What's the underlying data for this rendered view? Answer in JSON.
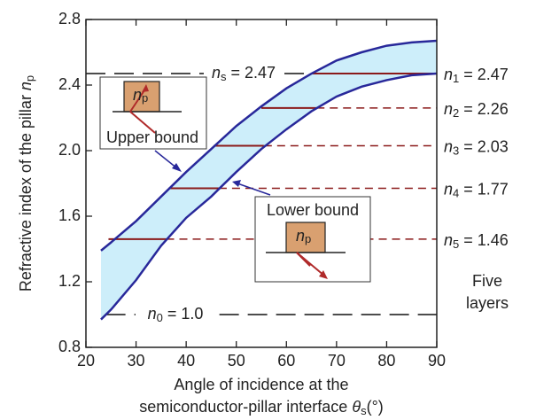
{
  "chart_data": {
    "type": "line",
    "xlabel": {
      "line1": "Angle of incidence at the",
      "text": "semiconductor-pillar interface ",
      "symbol": "θ",
      "subscript": "s",
      "rest": "(°)"
    },
    "ylabel": {
      "text": "Refractive index of the pillar ",
      "symbol": "n",
      "subscript": "p"
    },
    "xlim": [
      20,
      90
    ],
    "xticks": [
      20,
      30,
      40,
      50,
      60,
      70,
      80,
      90
    ],
    "ylim": [
      0.8,
      2.8
    ],
    "yticks": [
      0.8,
      1.2,
      1.6,
      {
        "value": 2,
        "label": "2.0"
      },
      2.4,
      2.8
    ],
    "fill_color": "#cdeefa",
    "series": [
      {
        "name": "Upper bound",
        "color": "#28289a",
        "x": [
          23,
          25,
          30,
          35,
          40,
          45,
          50,
          55,
          60,
          65,
          70,
          75,
          80,
          85,
          90
        ],
        "values": [
          1.39,
          1.44,
          1.57,
          1.72,
          1.87,
          2.01,
          2.15,
          2.27,
          2.38,
          2.47,
          2.55,
          2.6,
          2.64,
          2.66,
          2.67
        ]
      },
      {
        "name": "Lower bound",
        "color": "#28289a",
        "x": [
          23,
          25,
          30,
          35,
          40,
          45,
          50,
          55,
          60,
          65,
          70,
          75,
          80,
          85,
          90
        ],
        "values": [
          0.97,
          1.03,
          1.21,
          1.42,
          1.59,
          1.72,
          1.87,
          2.01,
          2.13,
          2.24,
          2.33,
          2.39,
          2.43,
          2.46,
          2.47
        ]
      }
    ],
    "layer_color": "#8b1a1a",
    "layers": [
      {
        "symbol": "n",
        "subscript": "1",
        "rest": " = 2.47",
        "value": 2.47,
        "solid": [
          65,
          90
        ],
        "dashed": false
      },
      {
        "symbol": "n",
        "subscript": "2",
        "rest": " = 2.26",
        "value": 2.26,
        "solid": [
          55,
          66
        ],
        "dashed": true
      },
      {
        "symbol": "n",
        "subscript": "3",
        "rest": " = 2.03",
        "value": 2.03,
        "solid": [
          45.5,
          55.5
        ],
        "dashed": true
      },
      {
        "symbol": "n",
        "subscript": "4",
        "rest": " = 1.77",
        "value": 1.77,
        "solid": [
          36.5,
          46.5
        ],
        "dashed": true
      },
      {
        "symbol": "n",
        "subscript": "5",
        "rest": " = 1.46",
        "value": 1.46,
        "solid": [
          24.5,
          36
        ],
        "dashed": true
      }
    ],
    "references": [
      {
        "symbol": "n",
        "subscript": "s",
        "rest": " = 2.47",
        "value": 2.47,
        "x": [
          20,
          65
        ]
      },
      {
        "symbol": "n",
        "subscript": "0",
        "rest": " = 1.0",
        "value": 1.0,
        "x": [
          24,
          90
        ]
      }
    ],
    "annotations": {
      "upper": "Upper bound",
      "lower": "Lower bound",
      "layers_line1": "Five",
      "layers_line2": "layers",
      "inset_symbol": "n",
      "inset_subscript": "p"
    }
  }
}
